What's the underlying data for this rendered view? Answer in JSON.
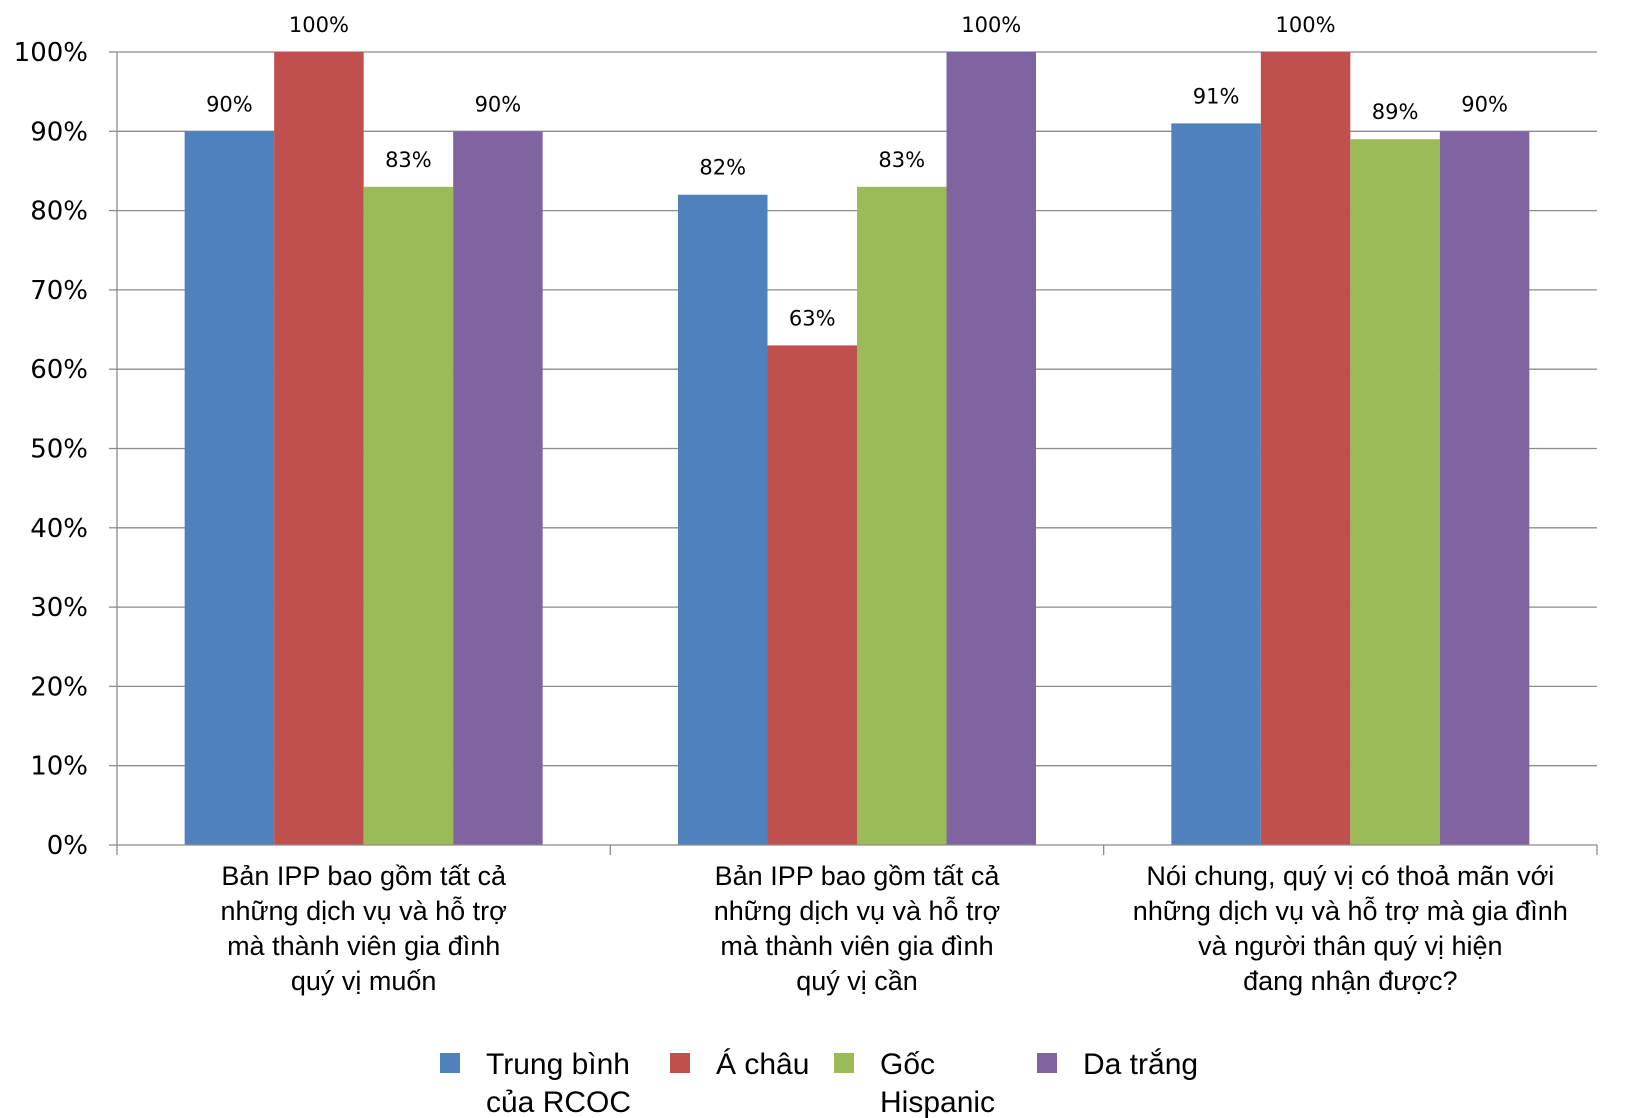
{
  "chart_data": {
    "type": "bar",
    "categories": [
      [
        "Bản IPP bao gồm tất cả",
        "những dịch vụ và hỗ trợ",
        "mà thành viên gia đình",
        "quý vị muốn"
      ],
      [
        "Bản IPP bao gồm tất cả",
        "những dịch vụ và hỗ trợ",
        "mà thành viên gia đình",
        "quý vị cần"
      ],
      [
        "Nói chung, quý vị có thoả mãn với",
        "những dịch vụ và hỗ trợ mà gia đình",
        "và người thân quý vị hiện",
        "đang nhận được?"
      ]
    ],
    "series": [
      {
        "name": [
          "Trung bình",
          "của RCOC"
        ],
        "color": "#4f81bd",
        "values": [
          90,
          82,
          91
        ],
        "labels": [
          "90%",
          "82%",
          "91%"
        ]
      },
      {
        "name": [
          "Á châu"
        ],
        "color": "#c0504d",
        "values": [
          100,
          63,
          100
        ],
        "labels": [
          "100%",
          "63%",
          "100%"
        ]
      },
      {
        "name": [
          "Gốc",
          "Hispanic"
        ],
        "color": "#9bbb59",
        "values": [
          83,
          83,
          89
        ],
        "labels": [
          "83%",
          "83%",
          "89%"
        ]
      },
      {
        "name": [
          "Da trắng"
        ],
        "color": "#8064a2",
        "values": [
          90,
          100,
          90
        ],
        "labels": [
          "90%",
          "100%",
          "90%"
        ]
      }
    ],
    "yticks": [
      "0%",
      "10%",
      "20%",
      "30%",
      "40%",
      "50%",
      "60%",
      "70%",
      "80%",
      "90%",
      "100%"
    ],
    "ylim": [
      0,
      100
    ],
    "grid": true,
    "legend_position": "bottom",
    "title": "",
    "xlabel": "",
    "ylabel": ""
  }
}
